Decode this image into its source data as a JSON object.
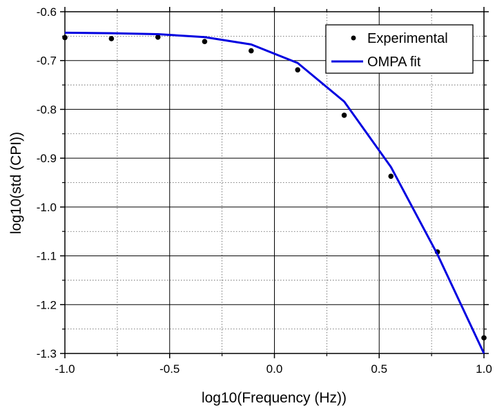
{
  "chart_data": {
    "type": "line",
    "xlabel": "log10(Frequency (Hz))",
    "ylabel": "log10(std (CPI))",
    "xlim": [
      -1.0,
      1.0
    ],
    "ylim": [
      -1.3,
      -0.6
    ],
    "x_ticks": [
      -1.0,
      -0.5,
      0.0,
      0.5,
      1.0
    ],
    "x_tick_labels": [
      "-1.0",
      "-0.5",
      "0.0",
      "0.5",
      "1.0"
    ],
    "y_ticks": [
      -0.6,
      -0.7,
      -0.8,
      -0.9,
      -1.0,
      -1.1,
      -1.2,
      -1.3
    ],
    "y_tick_labels": [
      "-0.6",
      "-0.7",
      "-0.8",
      "-0.9",
      "-1.0",
      "-1.1",
      "-1.2",
      "-1.3"
    ],
    "grid": true,
    "legend_position": "top-right",
    "series": [
      {
        "name": "Experimental",
        "style": "scatter",
        "color": "#000000",
        "x": [
          -1.0,
          -0.778,
          -0.556,
          -0.333,
          -0.111,
          0.111,
          0.333,
          0.556,
          0.778,
          1.0
        ],
        "y": [
          -0.653,
          -0.655,
          -0.652,
          -0.661,
          -0.68,
          -0.719,
          -0.812,
          -0.937,
          -1.092,
          -1.268
        ]
      },
      {
        "name": "OMPA fit",
        "style": "line",
        "color": "#0000e0",
        "x": [
          -1.0,
          -0.778,
          -0.556,
          -0.333,
          -0.111,
          0.111,
          0.333,
          0.556,
          0.778,
          1.0
        ],
        "y": [
          -0.643,
          -0.644,
          -0.646,
          -0.652,
          -0.667,
          -0.705,
          -0.784,
          -0.918,
          -1.097,
          -1.3
        ]
      }
    ]
  }
}
